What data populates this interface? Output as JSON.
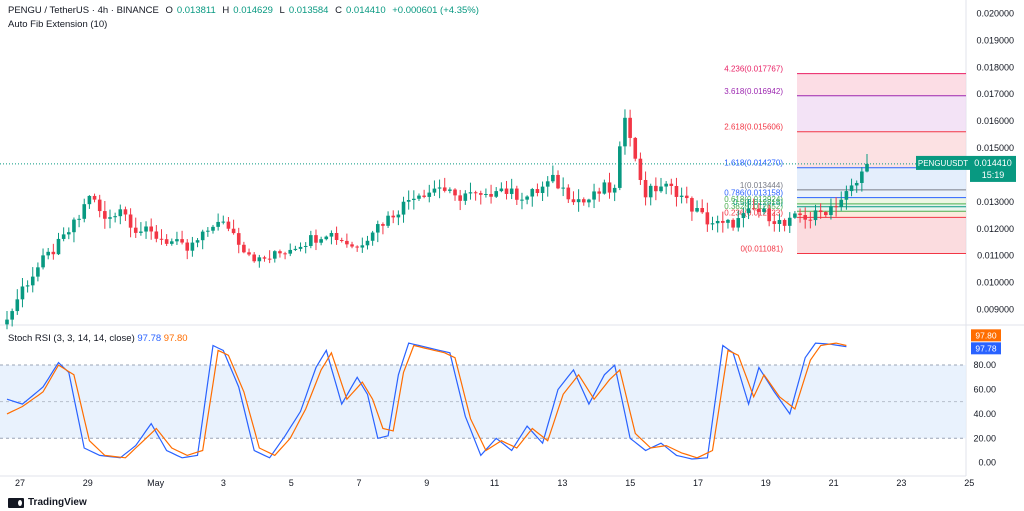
{
  "header": {
    "symbol": "PENGU / TetherUS · 4h · BINANCE",
    "o_label": "O",
    "o_val": "0.013811",
    "h_label": "H",
    "h_val": "0.014629",
    "l_label": "L",
    "l_val": "0.013584",
    "c_label": "C",
    "c_val": "0.014410",
    "change": "+0.000601 (+4.35%)",
    "indicator": "Auto Fib Extension (10)"
  },
  "oscillator": {
    "title": "Stoch RSI (3, 3, 14, 14, close)",
    "k_value": "97.78",
    "d_value": "97.80"
  },
  "price_tag": {
    "symbol": "PENGUUSDT",
    "price": "0.014410",
    "countdown": "15:19"
  },
  "brand": "TradingView",
  "colors": {
    "up": "#089981",
    "down": "#f23645",
    "k_line": "#2962ff",
    "d_line": "#ff6d00",
    "band": "#e3effd"
  },
  "chart_data": [
    {
      "type": "candlestick",
      "symbol": "PENGUUSDT",
      "ylim": [
        0.0085,
        0.0205
      ],
      "y_ticks": [
        "0.009000",
        "0.010000",
        "0.011000",
        "0.012000",
        "0.013000",
        "0.014000",
        "0.015000",
        "0.016000",
        "0.017000",
        "0.018000",
        "0.019000",
        "0.020000"
      ],
      "x_ticks": [
        "27",
        "29",
        "May",
        "3",
        "5",
        "7",
        "9",
        "11",
        "13",
        "15",
        "17",
        "19",
        "21",
        "23",
        "25"
      ],
      "anchors": [
        [
          0,
          0.0086
        ],
        [
          3,
          0.0098
        ],
        [
          7,
          0.0108
        ],
        [
          10,
          0.0114
        ],
        [
          14,
          0.0124
        ],
        [
          16,
          0.0133
        ],
        [
          19,
          0.0123
        ],
        [
          22,
          0.0128
        ],
        [
          25,
          0.012
        ],
        [
          28,
          0.0118
        ],
        [
          32,
          0.0115
        ],
        [
          35,
          0.0112
        ],
        [
          38,
          0.0117
        ],
        [
          40,
          0.0122
        ],
        [
          43,
          0.0121
        ],
        [
          46,
          0.0113
        ],
        [
          49,
          0.0108
        ],
        [
          52,
          0.011
        ],
        [
          56,
          0.0114
        ],
        [
          60,
          0.0117
        ],
        [
          62,
          0.0119
        ],
        [
          65,
          0.0116
        ],
        [
          68,
          0.0113
        ],
        [
          71,
          0.012
        ],
        [
          74,
          0.0124
        ],
        [
          77,
          0.0129
        ],
        [
          79,
          0.0133
        ],
        [
          82,
          0.0134
        ],
        [
          84,
          0.0136
        ],
        [
          87,
          0.0131
        ],
        [
          89,
          0.0133
        ],
        [
          93,
          0.0131
        ],
        [
          95,
          0.0136
        ],
        [
          98,
          0.0133
        ],
        [
          101,
          0.0132
        ],
        [
          103,
          0.0134
        ],
        [
          106,
          0.0138
        ],
        [
          109,
          0.0133
        ],
        [
          112,
          0.013
        ],
        [
          114,
          0.0132
        ],
        [
          116,
          0.0135
        ],
        [
          118,
          0.0134
        ],
        [
          120,
          0.0163
        ],
        [
          121,
          0.0156
        ],
        [
          122,
          0.0145
        ],
        [
          124,
          0.0133
        ],
        [
          127,
          0.0136
        ],
        [
          130,
          0.0134
        ],
        [
          133,
          0.0128
        ],
        [
          136,
          0.0123
        ],
        [
          139,
          0.0121
        ],
        [
          142,
          0.0123
        ],
        [
          145,
          0.0127
        ],
        [
          148,
          0.0125
        ],
        [
          151,
          0.0121
        ],
        [
          154,
          0.0125
        ],
        [
          156,
          0.0124
        ],
        [
          159,
          0.0127
        ],
        [
          162,
          0.0131
        ],
        [
          165,
          0.0137
        ],
        [
          167,
          0.0144
        ]
      ],
      "fib_levels": [
        {
          "label": "0(0.011081)",
          "value": 0.011081
        },
        {
          "label": "0.236(0.012423)",
          "value": 0.012423
        },
        {
          "label": "0.382(0.012652)",
          "value": 0.012652
        },
        {
          "label": "0.5(0.012818)",
          "value": 0.012818
        },
        {
          "label": "0.618(0.012924)",
          "value": 0.012924
        },
        {
          "label": "0.786(0.013158)",
          "value": 0.013158
        },
        {
          "label": "1(0.013444)",
          "value": 0.013444
        },
        {
          "label": "1.618(0.014270)",
          "value": 0.01427
        },
        {
          "label": "2.618(0.015606)",
          "value": 0.015606
        },
        {
          "label": "3.618(0.016942)",
          "value": 0.016942
        },
        {
          "label": "4.236(0.017767)",
          "value": 0.017767
        }
      ]
    },
    {
      "type": "line",
      "title": "Stoch RSI (3, 3, 14, 14, close)",
      "ylim": [
        -6,
        112
      ],
      "y_ticks": [
        "0.00",
        "20.00",
        "40.00",
        "60.00",
        "80.00"
      ],
      "band": [
        20,
        80
      ],
      "series": [
        {
          "name": "K",
          "anchors": [
            [
              0,
              52
            ],
            [
              3,
              48
            ],
            [
              7,
              62
            ],
            [
              10,
              82
            ],
            [
              12,
              74
            ],
            [
              15,
              12
            ],
            [
              18,
              6
            ],
            [
              22,
              4
            ],
            [
              25,
              14
            ],
            [
              28,
              32
            ],
            [
              31,
              10
            ],
            [
              34,
              4
            ],
            [
              37,
              6
            ],
            [
              40,
              96
            ],
            [
              42,
              92
            ],
            [
              45,
              62
            ],
            [
              48,
              10
            ],
            [
              51,
              4
            ],
            [
              54,
              22
            ],
            [
              57,
              42
            ],
            [
              60,
              78
            ],
            [
              62,
              92
            ],
            [
              65,
              48
            ],
            [
              68,
              70
            ],
            [
              70,
              56
            ],
            [
              72,
              20
            ],
            [
              74,
              22
            ],
            [
              76,
              72
            ],
            [
              78,
              98
            ],
            [
              80,
              96
            ],
            [
              84,
              92
            ],
            [
              86,
              90
            ],
            [
              89,
              38
            ],
            [
              92,
              6
            ],
            [
              95,
              20
            ],
            [
              98,
              10
            ],
            [
              101,
              30
            ],
            [
              104,
              16
            ],
            [
              107,
              60
            ],
            [
              110,
              76
            ],
            [
              113,
              48
            ],
            [
              116,
              72
            ],
            [
              118,
              80
            ],
            [
              121,
              20
            ],
            [
              124,
              10
            ],
            [
              127,
              16
            ],
            [
              130,
              6
            ],
            [
              133,
              3
            ],
            [
              136,
              4
            ],
            [
              139,
              96
            ],
            [
              141,
              90
            ],
            [
              144,
              48
            ],
            [
              146,
              78
            ],
            [
              149,
              58
            ],
            [
              152,
              40
            ],
            [
              155,
              86
            ],
            [
              157,
              98
            ],
            [
              160,
              97
            ],
            [
              163,
              95
            ]
          ]
        },
        {
          "name": "D",
          "anchors": [
            [
              0,
              40
            ],
            [
              3,
              46
            ],
            [
              7,
              58
            ],
            [
              10,
              80
            ],
            [
              13,
              72
            ],
            [
              16,
              18
            ],
            [
              19,
              6
            ],
            [
              23,
              4
            ],
            [
              26,
              16
            ],
            [
              29,
              28
            ],
            [
              32,
              12
            ],
            [
              35,
              6
            ],
            [
              38,
              10
            ],
            [
              41,
              92
            ],
            [
              43,
              88
            ],
            [
              46,
              58
            ],
            [
              49,
              12
            ],
            [
              52,
              6
            ],
            [
              55,
              20
            ],
            [
              58,
              44
            ],
            [
              61,
              76
            ],
            [
              63,
              90
            ],
            [
              66,
              52
            ],
            [
              69,
              66
            ],
            [
              71,
              52
            ],
            [
              73,
              28
            ],
            [
              75,
              26
            ],
            [
              77,
              74
            ],
            [
              79,
              96
            ],
            [
              81,
              94
            ],
            [
              85,
              90
            ],
            [
              87,
              86
            ],
            [
              90,
              36
            ],
            [
              93,
              10
            ],
            [
              96,
              18
            ],
            [
              99,
              12
            ],
            [
              102,
              28
            ],
            [
              105,
              18
            ],
            [
              108,
              56
            ],
            [
              111,
              72
            ],
            [
              114,
              52
            ],
            [
              117,
              68
            ],
            [
              119,
              76
            ],
            [
              122,
              24
            ],
            [
              125,
              12
            ],
            [
              128,
              14
            ],
            [
              131,
              8
            ],
            [
              134,
              4
            ],
            [
              137,
              10
            ],
            [
              140,
              92
            ],
            [
              142,
              88
            ],
            [
              145,
              54
            ],
            [
              147,
              72
            ],
            [
              150,
              54
            ],
            [
              153,
              44
            ],
            [
              156,
              84
            ],
            [
              158,
              96
            ],
            [
              161,
              98
            ],
            [
              163,
              96
            ]
          ]
        }
      ]
    }
  ]
}
